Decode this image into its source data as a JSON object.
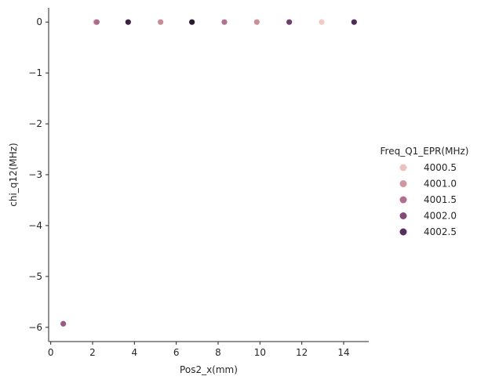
{
  "chart_data": {
    "type": "scatter",
    "xlabel": "Pos2_x(mm)",
    "ylabel": "chi_q12(MHz)",
    "xlim": [
      -0.1,
      15.2
    ],
    "ylim": [
      -6.28,
      0.28
    ],
    "xticks": [
      0,
      2,
      4,
      6,
      8,
      10,
      12,
      14
    ],
    "yticks": [
      0,
      -1,
      -2,
      -3,
      -4,
      -5,
      -6
    ],
    "xtick_labels": [
      "0",
      "2",
      "4",
      "6",
      "8",
      "10",
      "12",
      "14"
    ],
    "ytick_labels": [
      "0",
      "−1",
      "−2",
      "−3",
      "−4",
      "−5",
      "−6"
    ],
    "grid": false,
    "legend": {
      "title": "Freq_Q1_EPR(MHz)",
      "placement": "right",
      "entries": [
        {
          "label": "4000.5",
          "color": "#e8c4bd"
        },
        {
          "label": "4001.0",
          "color": "#d2969f"
        },
        {
          "label": "4001.5",
          "color": "#b06f90"
        },
        {
          "label": "4002.0",
          "color": "#844a78"
        },
        {
          "label": "4002.5",
          "color": "#55305e"
        }
      ]
    },
    "points": [
      {
        "x": 0.6,
        "y": -5.93,
        "color": "#9b5b87"
      },
      {
        "x": 2.15,
        "y": 0.0,
        "color": "#e8c4bd"
      },
      {
        "x": 2.2,
        "y": 0.0,
        "color": "#ad6a8c"
      },
      {
        "x": 3.7,
        "y": 0.0,
        "color": "#3b2244"
      },
      {
        "x": 5.25,
        "y": 0.0,
        "color": "#c98a98"
      },
      {
        "x": 6.75,
        "y": 0.0,
        "color": "#2a1932"
      },
      {
        "x": 8.3,
        "y": 0.0,
        "color": "#b07392"
      },
      {
        "x": 9.85,
        "y": 0.0,
        "color": "#cb8f9b"
      },
      {
        "x": 11.4,
        "y": 0.0,
        "color": "#6e3f6e"
      },
      {
        "x": 12.95,
        "y": 0.0,
        "color": "#ecccc4"
      },
      {
        "x": 14.5,
        "y": 0.0,
        "color": "#4f2b58"
      }
    ]
  }
}
